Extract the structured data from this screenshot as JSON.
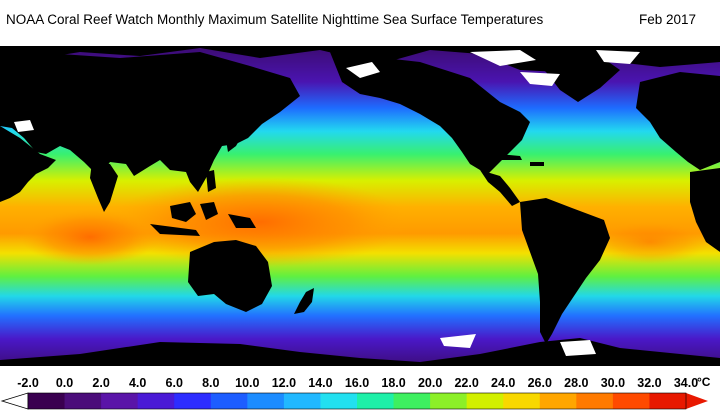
{
  "header": {
    "title": "NOAA Coral Reef Watch Monthly Maximum Satellite Nighttime Sea Surface Temperatures",
    "date": "Feb 2017"
  },
  "legend": {
    "ticks": [
      "-2.0",
      "0.0",
      "2.0",
      "4.0",
      "6.0",
      "8.0",
      "10.0",
      "12.0",
      "14.0",
      "16.0",
      "18.0",
      "20.0",
      "22.0",
      "24.0",
      "26.0",
      "28.0",
      "30.0",
      "32.0",
      "34.0"
    ],
    "unit": "°C",
    "colors": [
      "#ffffff",
      "#3a0050",
      "#4b0d7a",
      "#5a14a8",
      "#4a1ad6",
      "#2d2dff",
      "#1d5dff",
      "#1c8cff",
      "#21b8ff",
      "#22e0f0",
      "#1ef0a8",
      "#3ef060",
      "#8cf028",
      "#d2f000",
      "#f8d800",
      "#ffa600",
      "#ff7a00",
      "#ff4a00",
      "#e81800"
    ]
  },
  "map": {
    "land_color": "#000000",
    "ice_color": "#ffffff",
    "cold_color": "#3a0a6a",
    "warm_color": "#ff6a00"
  }
}
